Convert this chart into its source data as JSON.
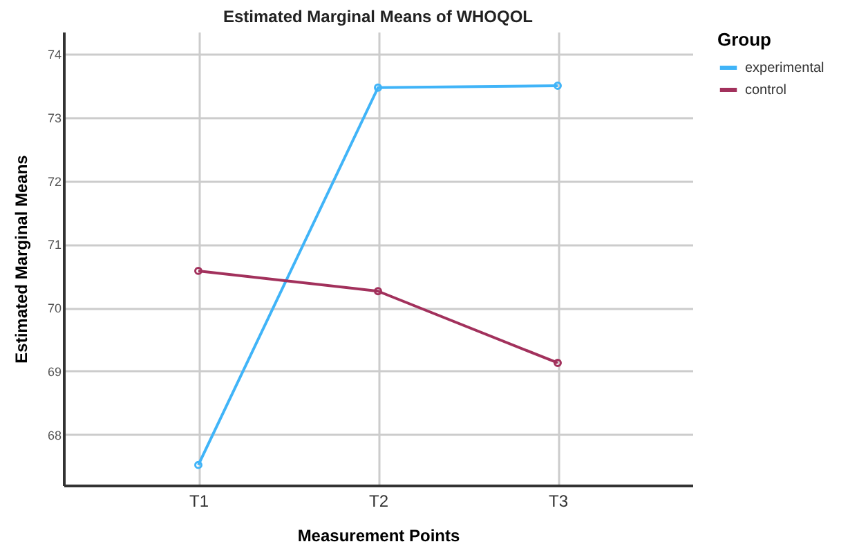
{
  "chart_data": {
    "type": "line",
    "title": "Estimated Marginal Means of WHOQOL",
    "xlabel": "Measurement Points",
    "ylabel": "Estimated Marginal Means",
    "legend_title": "Group",
    "categories": [
      "T1",
      "T2",
      "T3"
    ],
    "series": [
      {
        "name": "experimental",
        "color": "#40b4f8",
        "values": [
          67.52,
          73.47,
          73.5
        ]
      },
      {
        "name": "control",
        "color": "#a2315c",
        "values": [
          70.58,
          70.26,
          69.13
        ]
      }
    ],
    "ylim": [
      67.2,
      74.35
    ],
    "yticks": [
      68,
      69,
      70,
      71,
      72,
      73,
      74
    ],
    "grid": true,
    "legend": "top right",
    "marker": "circle",
    "line_style": "solid"
  }
}
